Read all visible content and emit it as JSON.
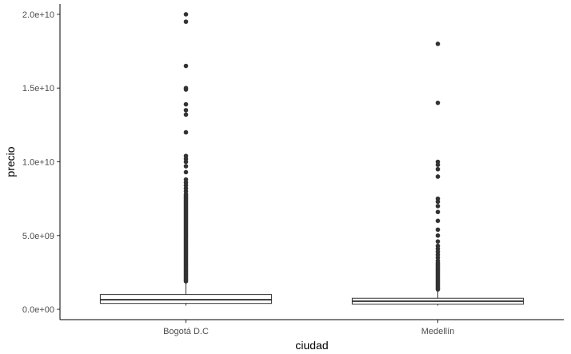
{
  "chart_data": {
    "type": "boxplot",
    "xlabel": "ciudad",
    "ylabel": "precio",
    "categories": [
      "Bogotá D.C",
      "Medellín"
    ],
    "ylim": [
      -700000000,
      20700000000
    ],
    "y_ticks": [
      {
        "value": 0,
        "label": "0.0e+00"
      },
      {
        "value": 5000000000,
        "label": "5.0e+09"
      },
      {
        "value": 10000000000,
        "label": "1.0e+10"
      },
      {
        "value": 15000000000,
        "label": "1.5e+10"
      },
      {
        "value": 20000000000,
        "label": "2.0e+10"
      }
    ],
    "grid": false,
    "colors": {
      "box_fill": "#ffffff",
      "box_line": "#333333",
      "outlier": "#333333",
      "axis": "#000000"
    },
    "boxes": [
      {
        "category": "Bogotá D.C",
        "whisker_low": 250000000,
        "q1": 400000000,
        "median": 650000000,
        "q3": 1000000000,
        "whisker_high": 1850000000,
        "outliers": [
          1900000000,
          2000000000,
          2100000000,
          2200000000,
          2300000000,
          2400000000,
          2500000000,
          2600000000,
          2700000000,
          2800000000,
          2900000000,
          3000000000,
          3100000000,
          3200000000,
          3300000000,
          3400000000,
          3500000000,
          3600000000,
          3700000000,
          3800000000,
          3900000000,
          4000000000,
          4100000000,
          4200000000,
          4300000000,
          4400000000,
          4500000000,
          4600000000,
          4700000000,
          4800000000,
          4900000000,
          5000000000,
          5100000000,
          5200000000,
          5300000000,
          5400000000,
          5500000000,
          5600000000,
          5700000000,
          5800000000,
          5900000000,
          6000000000,
          6100000000,
          6200000000,
          6300000000,
          6400000000,
          6500000000,
          6600000000,
          6700000000,
          6800000000,
          6900000000,
          7000000000,
          7100000000,
          7200000000,
          7300000000,
          7400000000,
          7500000000,
          7600000000,
          7700000000,
          7800000000,
          8000000000,
          8200000000,
          8400000000,
          8600000000,
          8800000000,
          9300000000,
          9700000000,
          10000000000,
          10200000000,
          10400000000,
          12000000000,
          13200000000,
          13500000000,
          13900000000,
          14900000000,
          15000000000,
          16500000000,
          19500000000,
          20000000000
        ]
      },
      {
        "category": "Medellín",
        "whisker_low": 250000000,
        "q1": 350000000,
        "median": 550000000,
        "q3": 750000000,
        "whisker_high": 1250000000,
        "outliers": [
          1350000000,
          1450000000,
          1550000000,
          1650000000,
          1750000000,
          1850000000,
          1950000000,
          2050000000,
          2150000000,
          2250000000,
          2350000000,
          2450000000,
          2550000000,
          2650000000,
          2750000000,
          2850000000,
          2950000000,
          3050000000,
          3150000000,
          3300000000,
          3500000000,
          3700000000,
          3900000000,
          4100000000,
          4300000000,
          4600000000,
          5000000000,
          5400000000,
          6000000000,
          6600000000,
          7000000000,
          7300000000,
          7500000000,
          9000000000,
          9500000000,
          9800000000,
          10000000000,
          14000000000,
          18000000000
        ]
      }
    ]
  }
}
